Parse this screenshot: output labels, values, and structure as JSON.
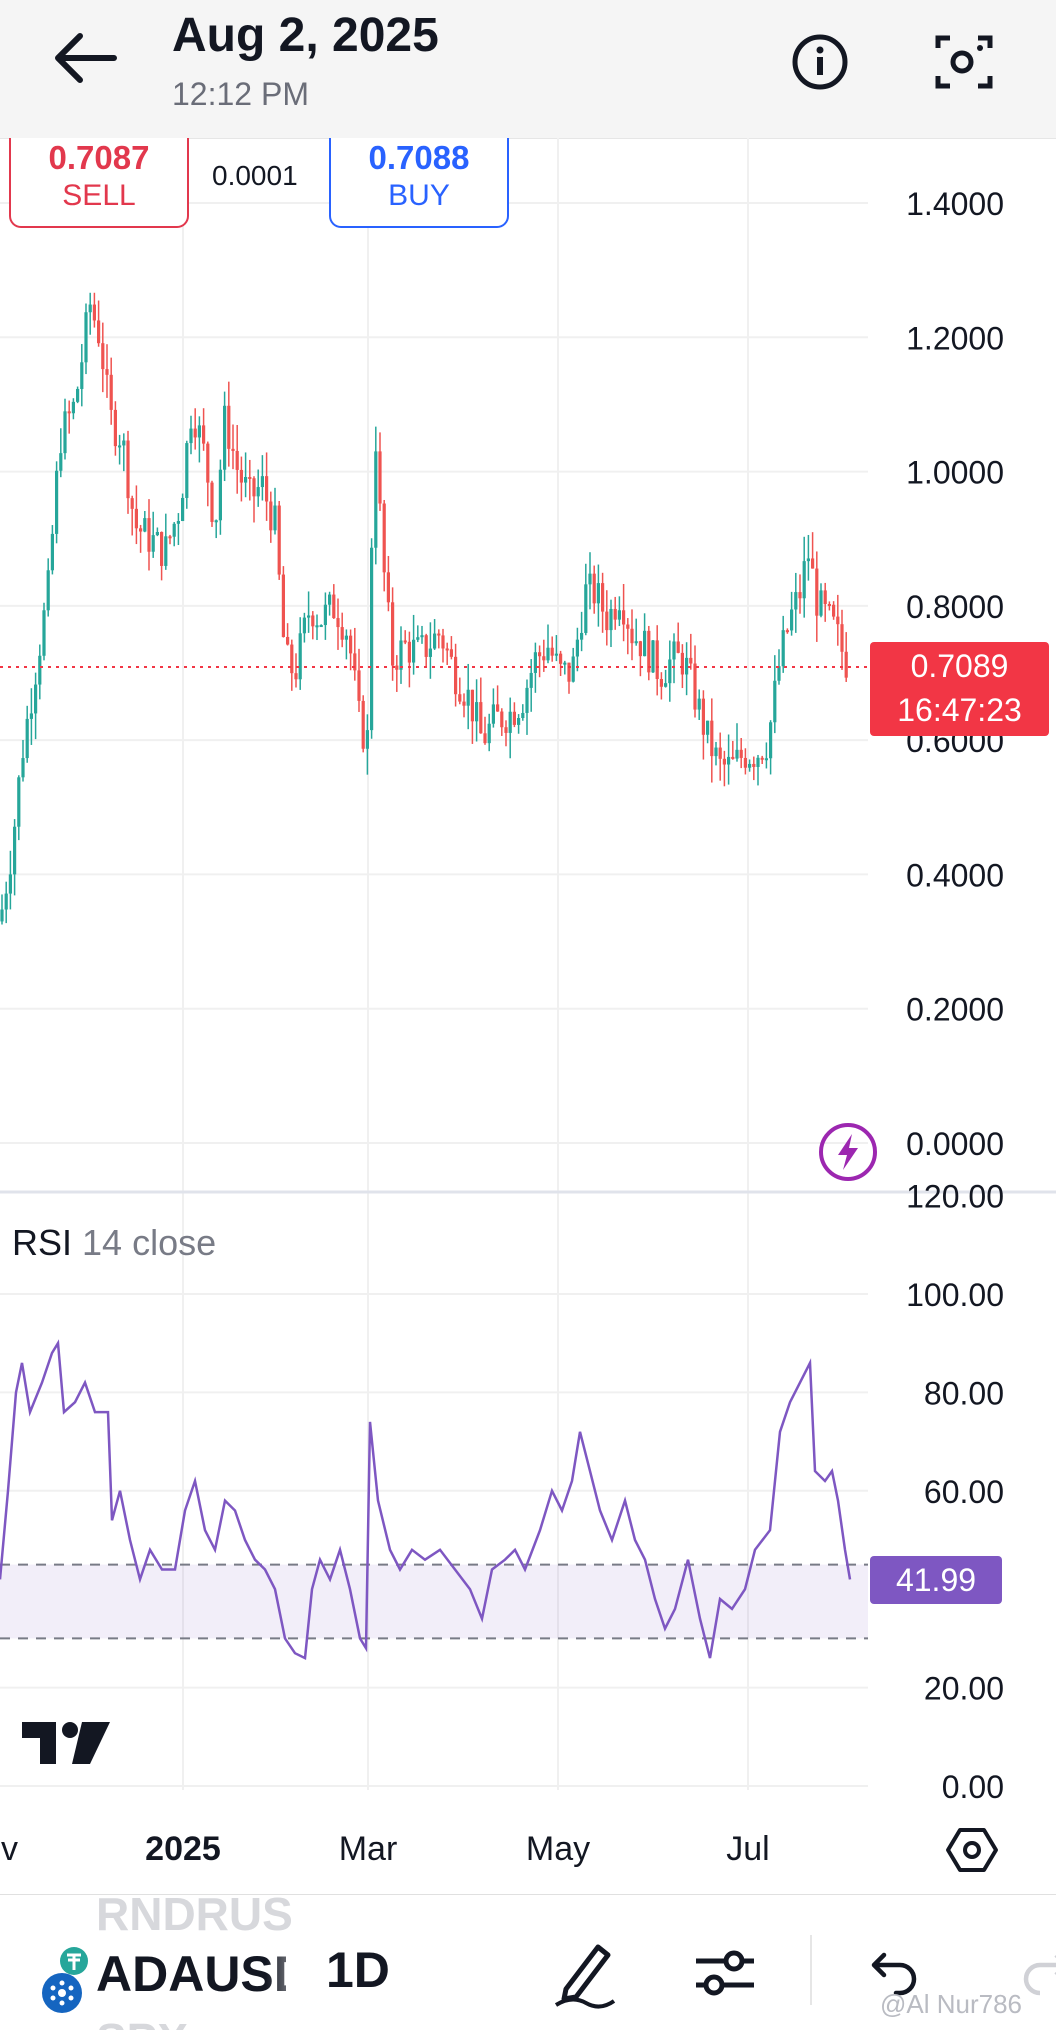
{
  "header": {
    "date": "Aug 2, 2025",
    "time": "12:12 PM"
  },
  "trade": {
    "sell_price": "0.7087",
    "sell_label": "SELL",
    "spread": "0.0001",
    "buy_price": "0.7088",
    "buy_label": "BUY"
  },
  "price_axis": {
    "labels": [
      "1.4000",
      "1.2000",
      "1.0000",
      "0.8000",
      "0.6000",
      "0.4000",
      "0.2000",
      "0.0000"
    ]
  },
  "last_price": {
    "price": "0.7089",
    "countdown": "16:47:23"
  },
  "rsi": {
    "name": "RSI",
    "params": "14 close",
    "value": "41.99",
    "axis_labels": [
      "120.00",
      "100.00",
      "80.00",
      "60.00",
      "20.00",
      "0.00"
    ]
  },
  "time_axis": {
    "labels": [
      "ov",
      "2025",
      "Mar",
      "May",
      "Jul"
    ]
  },
  "bottom_bar": {
    "symbol": "ADAUSD",
    "symbol_above": "RNDRUS",
    "symbol_below": "SPX",
    "interval": "1D",
    "watermark": "@Al Nur786"
  },
  "colors": {
    "up": "#26a69a",
    "down": "#ef5350",
    "sell": "#e2384d",
    "buy": "#2962ff",
    "rsi_line": "#7e57c2",
    "last_price_tag": "#f23645"
  },
  "icons": [
    "back-arrow-icon",
    "info-icon",
    "snapshot-icon",
    "lightning-icon",
    "tradingview-logo",
    "settings-hexagon-icon",
    "cardano-coin-icon",
    "pencil-icon",
    "indicators-icon",
    "undo-icon",
    "redo-icon"
  ]
}
